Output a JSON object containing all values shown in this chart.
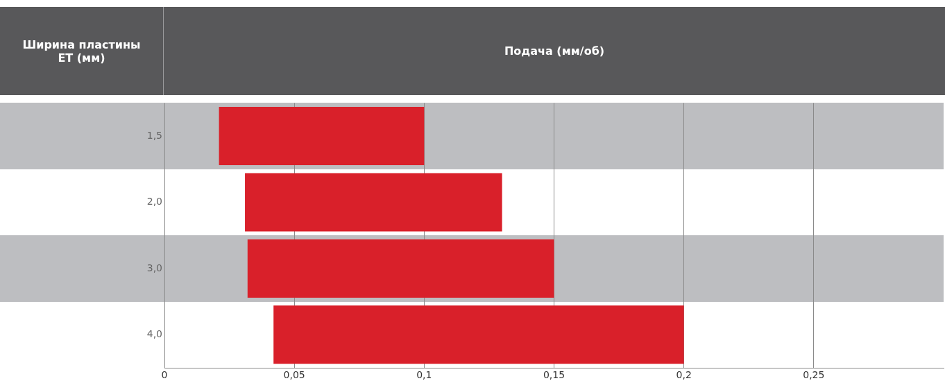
{
  "chart_data": {
    "type": "bar",
    "orientation": "horizontal",
    "xlabel": "Подача (мм/об)",
    "ylabel": "Ширина пластины ET (мм)",
    "categories": [
      "1,5",
      "2,0",
      "3,0",
      "4,0"
    ],
    "base": [
      0.021,
      0.031,
      0.032,
      0.042
    ],
    "values": [
      0.079,
      0.099,
      0.118,
      0.158
    ],
    "color": "#d9202a",
    "xlim": [
      0,
      0.3
    ],
    "xticks": [
      0,
      {
        "value": 0.05,
        "label": "0,05"
      },
      {
        "value": 0.1,
        "label": "0,1"
      },
      {
        "value": 0.15,
        "label": "0,15"
      },
      {
        "value": 0.2,
        "label": "0,2"
      },
      {
        "value": 0.25,
        "label": "0,25"
      }
    ],
    "grid": "x",
    "legend": false
  }
}
